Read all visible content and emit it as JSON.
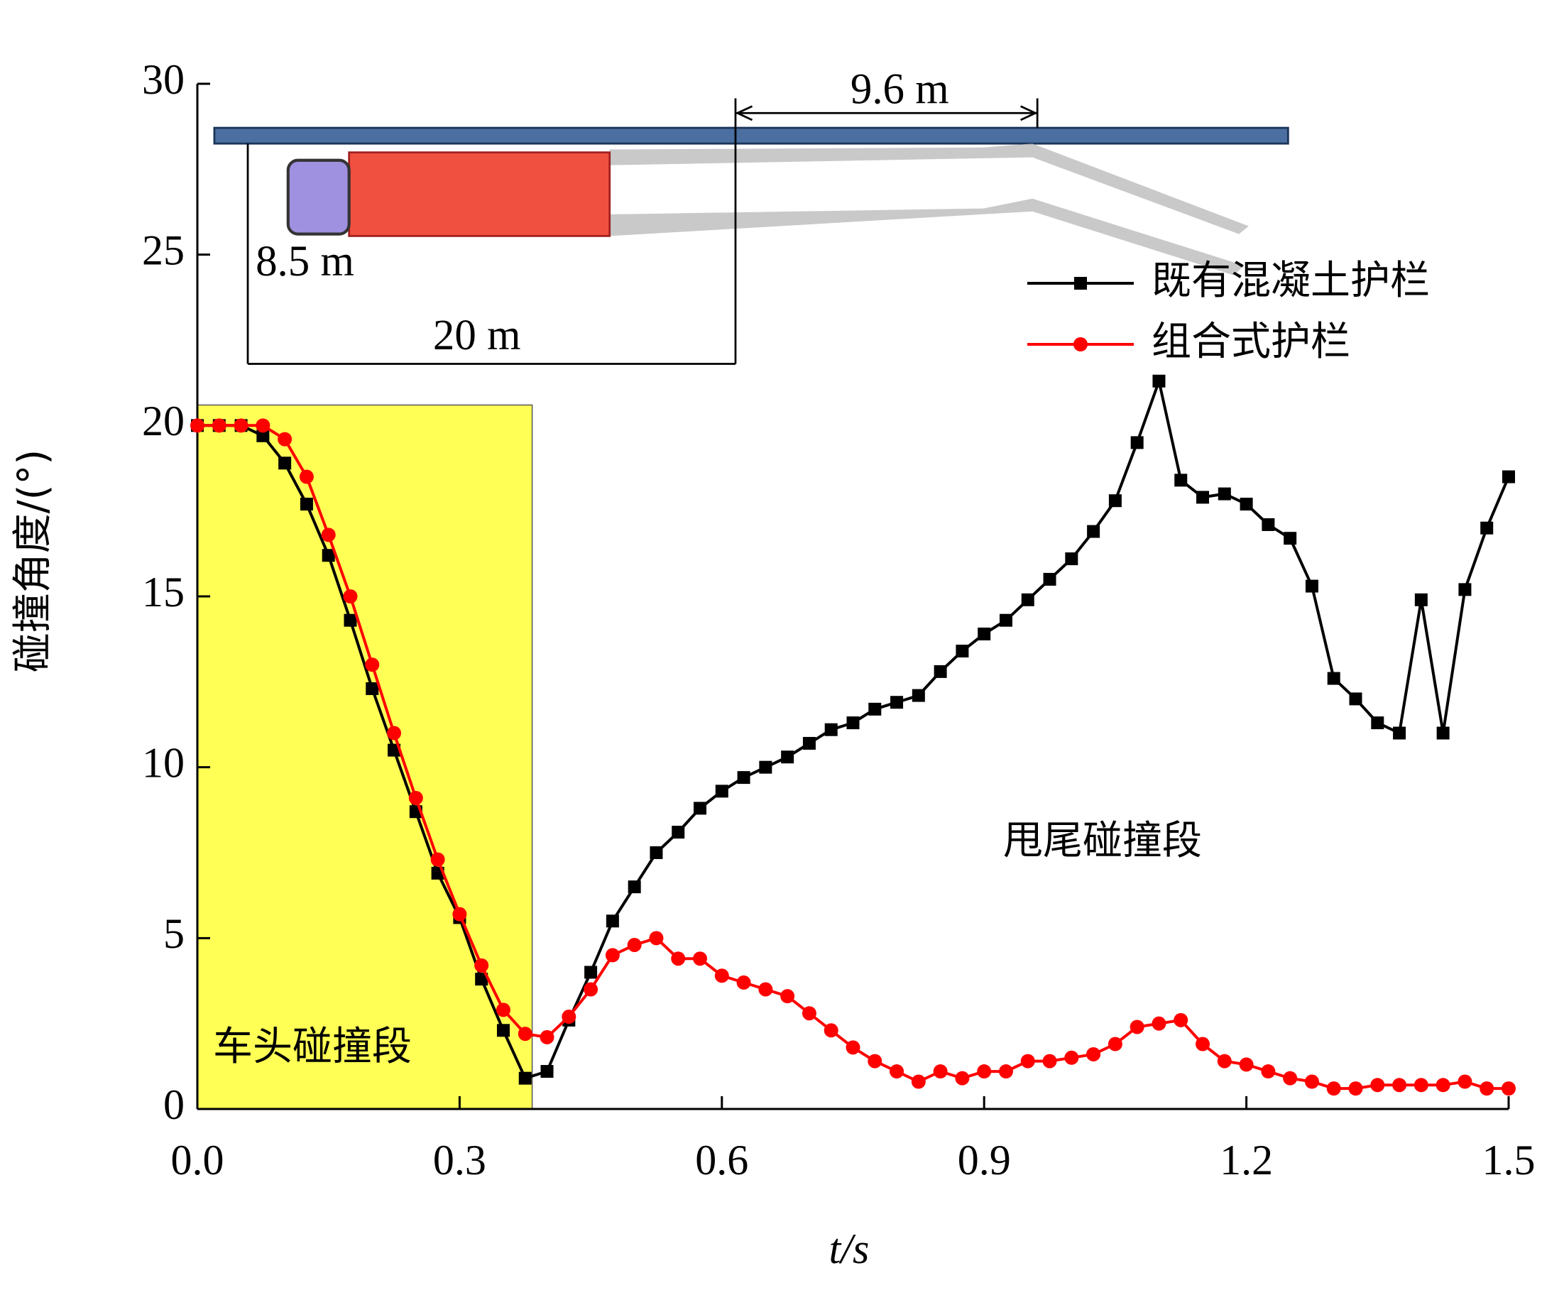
{
  "chart_data": {
    "type": "line",
    "ylabel": "碰撞角度/(°)",
    "xlabel": "t/s",
    "x": [
      0,
      0.025,
      0.05,
      0.075,
      0.1,
      0.125,
      0.15,
      0.175,
      0.2,
      0.225,
      0.25,
      0.275,
      0.3,
      0.325,
      0.35,
      0.375,
      0.4,
      0.425,
      0.45,
      0.475,
      0.5,
      0.525,
      0.55,
      0.575,
      0.6,
      0.625,
      0.65,
      0.675,
      0.7,
      0.725,
      0.75,
      0.775,
      0.8,
      0.825,
      0.85,
      0.875,
      0.9,
      0.925,
      0.95,
      0.975,
      1.0,
      1.025,
      1.05,
      1.075,
      1.1,
      1.125,
      1.15,
      1.175,
      1.2,
      1.225,
      1.25,
      1.275,
      1.3,
      1.325,
      1.35,
      1.375,
      1.4,
      1.425,
      1.45,
      1.475,
      1.5
    ],
    "series": [
      {
        "name": "既有混凝土护栏",
        "color": "#000000",
        "marker": "square",
        "values": [
          20,
          20,
          20,
          19.7,
          18.9,
          17.7,
          16.2,
          14.3,
          12.3,
          10.5,
          8.7,
          6.9,
          5.6,
          3.8,
          2.3,
          0.9,
          1.1,
          2.6,
          4.0,
          5.5,
          6.5,
          7.5,
          8.1,
          8.8,
          9.3,
          9.7,
          10.0,
          10.3,
          10.7,
          11.1,
          11.3,
          11.7,
          11.9,
          12.1,
          12.8,
          13.4,
          13.9,
          14.3,
          14.9,
          15.5,
          16.1,
          16.9,
          17.8,
          19.5,
          21.3,
          18.4,
          17.9,
          18.0,
          17.7,
          17.1,
          16.7,
          15.3,
          12.6,
          12.0,
          11.3,
          11.0,
          14.9,
          11.0,
          15.2,
          17.0,
          18.5
        ]
      },
      {
        "name": "组合式护栏",
        "color": "#ff0000",
        "marker": "circle",
        "values": [
          20,
          20,
          20,
          20,
          19.6,
          18.5,
          16.8,
          15.0,
          13.0,
          11.0,
          9.1,
          7.3,
          5.7,
          4.2,
          2.9,
          2.2,
          2.1,
          2.7,
          3.5,
          4.5,
          4.8,
          5.0,
          4.4,
          4.4,
          3.9,
          3.7,
          3.5,
          3.3,
          2.8,
          2.3,
          1.8,
          1.4,
          1.1,
          0.8,
          1.1,
          0.9,
          1.1,
          1.1,
          1.4,
          1.4,
          1.5,
          1.6,
          1.9,
          2.4,
          2.5,
          2.6,
          1.9,
          1.4,
          1.3,
          1.1,
          0.9,
          0.8,
          0.6,
          0.6,
          0.7,
          0.7,
          0.7,
          0.7,
          0.8,
          0.6,
          0.6
        ]
      }
    ],
    "xlim": [
      0,
      1.5
    ],
    "xticks": [
      {
        "value": 0,
        "label": "0.0"
      },
      0.3,
      0.6,
      0.9,
      1.2,
      1.5
    ],
    "ylim": [
      0,
      30
    ],
    "yticks": [
      0,
      5,
      10,
      15,
      20,
      25,
      30
    ],
    "legend": "upper right",
    "highlight": {
      "xlim": [
        0,
        0.383
      ],
      "ylim": [
        0,
        20.6
      ],
      "color": "#ffff55",
      "label": "车头碰撞段"
    },
    "annotations": [
      "甩尾碰撞段"
    ],
    "inset_labels": [
      "9.6 m",
      "8.5 m",
      "20 m"
    ]
  }
}
